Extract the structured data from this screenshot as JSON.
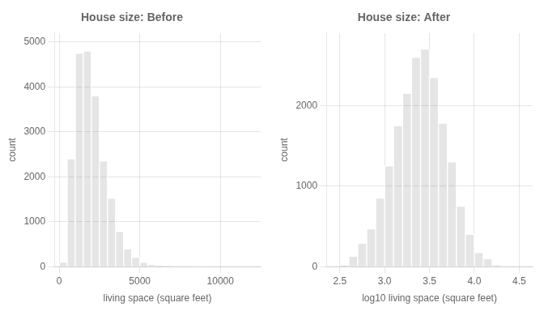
{
  "chart_data": [
    {
      "type": "histogram",
      "title": "House size: Before",
      "xlabel": "living space (square feet)",
      "ylabel": "count",
      "bins": [
        0,
        500,
        1000,
        1500,
        2000,
        2500,
        3000,
        3500,
        4000,
        4500,
        5000,
        5500,
        6000,
        6500,
        7000,
        7500,
        8000,
        8500,
        9000
      ],
      "values": [
        100,
        2400,
        4750,
        4800,
        3800,
        2350,
        1520,
        780,
        400,
        210,
        95,
        50,
        25,
        15,
        8,
        4,
        2,
        1
      ],
      "xlim": [
        -300,
        12500
      ],
      "ylim": [
        0,
        5200
      ],
      "xticks": [
        0,
        5000,
        10000
      ],
      "yticks": [
        0,
        1000,
        2000,
        3000,
        4000,
        5000
      ],
      "grid": true
    },
    {
      "type": "histogram",
      "title": "House size: After",
      "xlabel": "log10 living space (square feet)",
      "ylabel": "count",
      "bins": [
        2.5,
        2.6,
        2.7,
        2.8,
        2.9,
        3.0,
        3.1,
        3.2,
        3.3,
        3.4,
        3.5,
        3.6,
        3.7,
        3.8,
        3.9,
        4.0,
        4.1,
        4.2,
        4.3
      ],
      "values": [
        20,
        130,
        290,
        470,
        850,
        1250,
        1750,
        2150,
        2600,
        2700,
        2350,
        1780,
        1300,
        750,
        400,
        175,
        100,
        25
      ],
      "xlim": [
        2.35,
        4.65
      ],
      "ylim": [
        0,
        2900
      ],
      "xticks": [
        2.5,
        {
          "value": 3.0,
          "label": "3.0"
        },
        3.5,
        {
          "value": 4.0,
          "label": "4.0"
        },
        4.5
      ],
      "yticks": [
        0,
        1000,
        2000
      ],
      "grid": true
    }
  ]
}
